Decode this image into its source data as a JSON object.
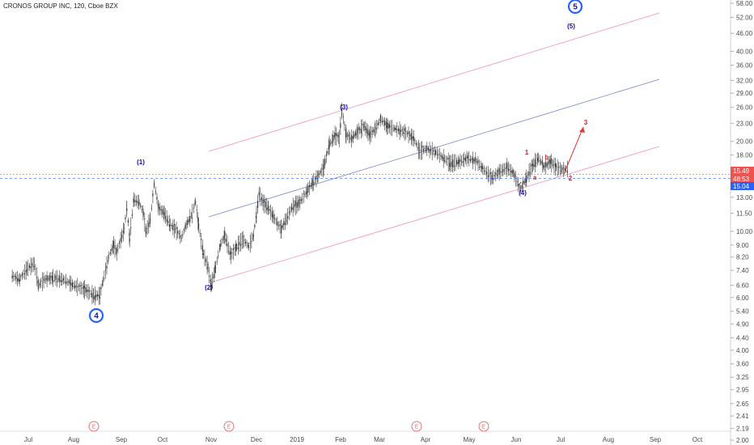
{
  "chart_data": {
    "type": "candlestick",
    "title": "CRONOS GROUP INC, 120, Cboe BZX",
    "symbol": "CRONOS GROUP INC",
    "interval": "120",
    "exchange": "Cboe BZX",
    "scale": "log",
    "grid": false,
    "x_ticks": [
      "Jul",
      "Aug",
      "Sep",
      "Oct",
      "Nov",
      "Dec",
      "2019",
      "Feb",
      "Mar",
      "Apr",
      "May",
      "Jun",
      "Jul",
      "Aug",
      "Sep",
      "Oct"
    ],
    "y_ticks": [
      "58.00",
      "52.00",
      "46.00",
      "40.00",
      "36.00",
      "32.00",
      "29.00",
      "26.00",
      "23.00",
      "20.00",
      "18.00",
      "16.00",
      "13.00",
      "11.50",
      "10.00",
      "9.00",
      "8.20",
      "7.40",
      "6.60",
      "6.00",
      "5.40",
      "4.90",
      "4.40",
      "4.00",
      "3.60",
      "3.25",
      "2.95",
      "2.65",
      "2.41",
      "2.19",
      "2.00"
    ],
    "ylim": [
      2.0,
      61.0
    ],
    "price_markers": [
      {
        "label": "15.49",
        "color": "#ef5350"
      },
      {
        "label": "48:53",
        "color": "#ef5350"
      },
      {
        "label": "15.04",
        "color": "#2962ff"
      }
    ],
    "price_series": [
      [
        "2018-06-20",
        7.1
      ],
      [
        "2018-06-25",
        6.9
      ],
      [
        "2018-06-30",
        7.5
      ],
      [
        "2018-07-05",
        7.8
      ],
      [
        "2018-07-08",
        6.6
      ],
      [
        "2018-07-12",
        6.9
      ],
      [
        "2018-07-18",
        7.0
      ],
      [
        "2018-07-25",
        6.9
      ],
      [
        "2018-08-01",
        6.6
      ],
      [
        "2018-08-08",
        6.4
      ],
      [
        "2018-08-14",
        6.1
      ],
      [
        "2018-08-18",
        6.1
      ],
      [
        "2018-08-20",
        6.8
      ],
      [
        "2018-08-24",
        8.3
      ],
      [
        "2018-08-27",
        9.0
      ],
      [
        "2018-08-29",
        8.5
      ],
      [
        "2018-09-03",
        10.2
      ],
      [
        "2018-09-05",
        12.0
      ],
      [
        "2018-09-07",
        9.5
      ],
      [
        "2018-09-10",
        12.8
      ],
      [
        "2018-09-14",
        12.5
      ],
      [
        "2018-09-17",
        11.5
      ],
      [
        "2018-09-19",
        10.0
      ],
      [
        "2018-09-22",
        11.0
      ],
      [
        "2018-09-25",
        14.5
      ],
      [
        "2018-09-28",
        12.0
      ],
      [
        "2018-10-02",
        11.5
      ],
      [
        "2018-10-06",
        10.5
      ],
      [
        "2018-10-09",
        10.2
      ],
      [
        "2018-10-13",
        9.5
      ],
      [
        "2018-10-16",
        10.5
      ],
      [
        "2018-10-20",
        11.5
      ],
      [
        "2018-10-22",
        12.6
      ],
      [
        "2018-10-24",
        10.5
      ],
      [
        "2018-10-27",
        8.4
      ],
      [
        "2018-10-30",
        7.6
      ],
      [
        "2018-11-01",
        6.6
      ],
      [
        "2018-11-04",
        7.6
      ],
      [
        "2018-11-07",
        9.0
      ],
      [
        "2018-11-10",
        9.7
      ],
      [
        "2018-11-14",
        8.3
      ],
      [
        "2018-11-18",
        8.9
      ],
      [
        "2018-11-22",
        9.4
      ],
      [
        "2018-11-26",
        8.9
      ],
      [
        "2018-11-29",
        9.7
      ],
      [
        "2018-12-01",
        11.4
      ],
      [
        "2018-12-03",
        13.4
      ],
      [
        "2018-12-06",
        12.5
      ],
      [
        "2018-12-10",
        12.0
      ],
      [
        "2018-12-14",
        11.2
      ],
      [
        "2018-12-17",
        10.6
      ],
      [
        "2018-12-20",
        10.2
      ],
      [
        "2018-12-24",
        11.0
      ],
      [
        "2018-12-28",
        12.0
      ],
      [
        "2019-01-03",
        12.5
      ],
      [
        "2019-01-08",
        13.6
      ],
      [
        "2019-01-12",
        14.5
      ],
      [
        "2019-01-16",
        15.3
      ],
      [
        "2019-01-20",
        16.4
      ],
      [
        "2019-01-24",
        19.5
      ],
      [
        "2019-01-28",
        21.0
      ],
      [
        "2019-01-31",
        20.5
      ],
      [
        "2019-02-02",
        25.3
      ],
      [
        "2019-02-05",
        21.0
      ],
      [
        "2019-02-09",
        20.5
      ],
      [
        "2019-02-13",
        21.5
      ],
      [
        "2019-02-18",
        22.5
      ],
      [
        "2019-02-22",
        21.0
      ],
      [
        "2019-02-26",
        22.0
      ],
      [
        "2019-03-02",
        23.8
      ],
      [
        "2019-03-06",
        22.5
      ],
      [
        "2019-03-12",
        22.0
      ],
      [
        "2019-03-18",
        21.5
      ],
      [
        "2019-03-24",
        20.5
      ],
      [
        "2019-03-28",
        18.6
      ],
      [
        "2019-04-02",
        18.9
      ],
      [
        "2019-04-08",
        18.4
      ],
      [
        "2019-04-14",
        17.5
      ],
      [
        "2019-04-18",
        16.9
      ],
      [
        "2019-04-24",
        17.1
      ],
      [
        "2019-04-30",
        17.6
      ],
      [
        "2019-05-06",
        17.1
      ],
      [
        "2019-05-10",
        16.2
      ],
      [
        "2019-05-16",
        15.1
      ],
      [
        "2019-05-20",
        15.7
      ],
      [
        "2019-05-26",
        16.4
      ],
      [
        "2019-05-30",
        15.7
      ],
      [
        "2019-06-04",
        13.8
      ],
      [
        "2019-06-08",
        15.1
      ],
      [
        "2019-06-12",
        16.6
      ],
      [
        "2019-06-16",
        17.6
      ],
      [
        "2019-06-20",
        16.4
      ],
      [
        "2019-06-24",
        17.1
      ],
      [
        "2019-06-28",
        16.4
      ],
      [
        "2019-07-02",
        16.1
      ],
      [
        "2019-07-06",
        16.2
      ]
    ]
  },
  "annotations": {
    "waves": [
      {
        "label": "(1)",
        "color": "#1a0dab"
      },
      {
        "label": "(2)",
        "color": "#1a0dab"
      },
      {
        "label": "(3)",
        "color": "#1a0dab"
      },
      {
        "label": "(4)",
        "color": "#1a0dab"
      },
      {
        "label": "(5)",
        "color": "#1a0dab"
      },
      {
        "label": "1",
        "color": "#c62828"
      },
      {
        "label": "a",
        "color": "#c62828"
      },
      {
        "label": "b",
        "color": "#c62828"
      },
      {
        "label": "2",
        "color": "#c62828"
      },
      {
        "label": "3",
        "color": "#c62828"
      }
    ],
    "circled_waves": [
      "4",
      "5"
    ],
    "earnings_markers": [
      "E",
      "E",
      "E",
      "E"
    ]
  },
  "colors": {
    "candles": "#333333",
    "channel_outer": "#f48fb1",
    "channel_mid": "#7986cb",
    "projection_arrow": "#e53935",
    "circle": "#2962ff"
  }
}
